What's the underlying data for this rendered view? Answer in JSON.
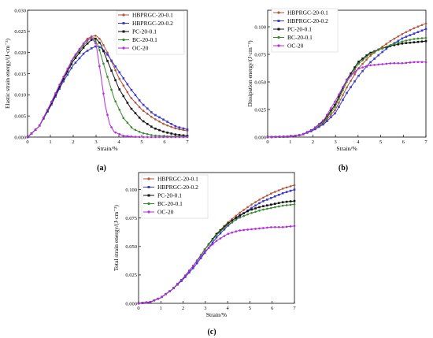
{
  "chart_data": [
    {
      "type": "line",
      "panel_label": "(a)",
      "xlabel": "Strain/%",
      "ylabel": "Elastic strain energy/(J·cm⁻³)",
      "xlim": [
        0,
        7
      ],
      "ylim": [
        0,
        0.03
      ],
      "xticks": [
        "0",
        "1",
        "2",
        "3",
        "4",
        "5",
        "6",
        "7"
      ],
      "yticks": [
        "0.000",
        "0.005",
        "0.010",
        "0.015",
        "0.020",
        "0.025",
        "0.030"
      ],
      "legend_position": "top-right",
      "series": [
        {
          "name": "HBPRGC-20-0.1",
          "color": "#b5523a",
          "marker": "circle",
          "x": [
            0,
            0.5,
            1,
            1.5,
            2,
            2.3,
            2.6,
            2.8,
            3.0,
            3.2,
            3.5,
            4,
            4.5,
            5,
            5.5,
            6,
            6.5,
            7
          ],
          "y": [
            0,
            0.0025,
            0.0075,
            0.013,
            0.0185,
            0.021,
            0.0232,
            0.0238,
            0.024,
            0.023,
            0.02,
            0.014,
            0.0095,
            0.0065,
            0.0045,
            0.003,
            0.002,
            0.0015
          ]
        },
        {
          "name": "HBPRGC-20-0.2",
          "color": "#3a3ad0",
          "marker": "square",
          "x": [
            0,
            0.5,
            1,
            1.5,
            2,
            2.5,
            2.8,
            3.0,
            3.2,
            3.5,
            4,
            4.5,
            5,
            5.5,
            6,
            6.5,
            7
          ],
          "y": [
            0,
            0.0025,
            0.0072,
            0.0125,
            0.017,
            0.02,
            0.021,
            0.0215,
            0.0212,
            0.0195,
            0.0155,
            0.0115,
            0.008,
            0.0055,
            0.004,
            0.0025,
            0.0018
          ]
        },
        {
          "name": "PC-20-0.1",
          "color": "#111111",
          "marker": "square",
          "x": [
            0,
            0.5,
            1,
            1.5,
            2,
            2.5,
            2.8,
            3.0,
            3.2,
            3.5,
            4,
            4.5,
            5,
            5.5,
            6,
            6.5,
            7
          ],
          "y": [
            0,
            0.0025,
            0.0075,
            0.013,
            0.018,
            0.0215,
            0.023,
            0.0233,
            0.022,
            0.018,
            0.0115,
            0.007,
            0.004,
            0.0022,
            0.0012,
            0.0006,
            0.0003
          ]
        },
        {
          "name": "BC-20-0.1",
          "color": "#3a8a2a",
          "marker": "circle",
          "x": [
            0,
            0.5,
            1,
            1.5,
            2,
            2.5,
            2.7,
            2.9,
            3.1,
            3.4,
            3.8,
            4.2,
            4.6,
            5,
            5.5,
            6,
            7
          ],
          "y": [
            0,
            0.0025,
            0.0078,
            0.0135,
            0.0185,
            0.022,
            0.0232,
            0.0235,
            0.0215,
            0.016,
            0.009,
            0.0045,
            0.002,
            0.001,
            0.0004,
            0.0002,
            0.0001
          ]
        },
        {
          "name": "OC-20",
          "color": "#b42ae0",
          "marker": "circle",
          "x": [
            0,
            0.5,
            1,
            1.5,
            2,
            2.5,
            2.8,
            3.0,
            3.2,
            3.4,
            3.6,
            3.8,
            4.2,
            4.6,
            5,
            7
          ],
          "y": [
            0,
            0.0025,
            0.0078,
            0.0135,
            0.0188,
            0.0225,
            0.0235,
            0.022,
            0.015,
            0.0075,
            0.003,
            0.0012,
            0.0003,
            0.0001,
            0,
            0
          ]
        }
      ]
    },
    {
      "type": "line",
      "panel_label": "(b)",
      "xlabel": "Strain/%",
      "ylabel": "Dissipation energy/(J·cm⁻³)",
      "xlim": [
        0,
        7
      ],
      "ylim": [
        0,
        0.115
      ],
      "xticks": [
        "0",
        "1",
        "2",
        "3",
        "4",
        "5",
        "6",
        "7"
      ],
      "yticks": [
        "0.000",
        "0.025",
        "0.050",
        "0.075",
        "0.100"
      ],
      "legend_position": "top-left",
      "series": [
        {
          "name": "HBPRGC-20-0.1",
          "color": "#b5523a",
          "marker": "circle",
          "x": [
            0,
            1,
            1.5,
            2,
            2.5,
            3,
            3.5,
            4,
            4.5,
            5,
            5.5,
            6,
            6.5,
            7
          ],
          "y": [
            0,
            0.0005,
            0.002,
            0.006,
            0.013,
            0.025,
            0.045,
            0.062,
            0.073,
            0.081,
            0.088,
            0.094,
            0.099,
            0.103
          ]
        },
        {
          "name": "HBPRGC-20-0.2",
          "color": "#3a3ad0",
          "marker": "square",
          "x": [
            0,
            1,
            1.5,
            2,
            2.5,
            3,
            3.5,
            4,
            4.5,
            5,
            5.5,
            6,
            6.5,
            7
          ],
          "y": [
            0,
            0.0005,
            0.002,
            0.006,
            0.012,
            0.022,
            0.04,
            0.055,
            0.067,
            0.076,
            0.084,
            0.09,
            0.094,
            0.098
          ]
        },
        {
          "name": "PC-20-0.1",
          "color": "#111111",
          "marker": "square",
          "x": [
            0,
            1,
            1.5,
            2,
            2.5,
            3,
            3.5,
            4,
            4.5,
            5,
            5.5,
            6,
            6.5,
            7
          ],
          "y": [
            0,
            0.0005,
            0.002,
            0.007,
            0.015,
            0.03,
            0.052,
            0.068,
            0.076,
            0.08,
            0.083,
            0.085,
            0.086,
            0.087
          ]
        },
        {
          "name": "BC-20-0.1",
          "color": "#3a8a2a",
          "marker": "circle",
          "x": [
            0,
            1,
            1.5,
            2,
            2.5,
            3,
            3.5,
            4,
            4.5,
            5,
            5.5,
            6,
            6.5,
            7
          ],
          "y": [
            0,
            0.0005,
            0.002,
            0.007,
            0.014,
            0.028,
            0.05,
            0.066,
            0.075,
            0.08,
            0.084,
            0.087,
            0.089,
            0.09
          ]
        },
        {
          "name": "OC-20",
          "color": "#b42ae0",
          "marker": "circle",
          "x": [
            0,
            1,
            1.5,
            2,
            2.5,
            3,
            3.5,
            4,
            4.5,
            5,
            5.5,
            6,
            6.5,
            7
          ],
          "y": [
            0,
            0.0005,
            0.002,
            0.007,
            0.016,
            0.033,
            0.052,
            0.062,
            0.065,
            0.066,
            0.067,
            0.067,
            0.068,
            0.068
          ]
        }
      ]
    },
    {
      "type": "line",
      "panel_label": "(c)",
      "xlabel": "Strain/%",
      "ylabel": "Total strain energy/(J·cm⁻³)",
      "xlim": [
        0,
        7
      ],
      "ylim": [
        0,
        0.115
      ],
      "xticks": [
        "0",
        "1",
        "2",
        "3",
        "4",
        "5",
        "6",
        "7"
      ],
      "yticks": [
        "0.000",
        "0.025",
        "0.050",
        "0.075",
        "0.100"
      ],
      "legend_position": "top-left",
      "series": [
        {
          "name": "HBPRGC-20-0.1",
          "color": "#b5523a",
          "marker": "circle",
          "x": [
            0,
            0.5,
            1,
            1.5,
            2,
            2.5,
            3,
            3.5,
            4,
            4.5,
            5,
            5.5,
            6,
            6.5,
            7
          ],
          "y": [
            0,
            0.001,
            0.005,
            0.012,
            0.022,
            0.034,
            0.048,
            0.061,
            0.071,
            0.079,
            0.086,
            0.092,
            0.097,
            0.101,
            0.104
          ]
        },
        {
          "name": "HBPRGC-20-0.2",
          "color": "#3a3ad0",
          "marker": "square",
          "x": [
            0,
            0.5,
            1,
            1.5,
            2,
            2.5,
            3,
            3.5,
            4,
            4.5,
            5,
            5.5,
            6,
            6.5,
            7
          ],
          "y": [
            0,
            0.001,
            0.005,
            0.012,
            0.021,
            0.032,
            0.045,
            0.058,
            0.068,
            0.076,
            0.083,
            0.089,
            0.093,
            0.097,
            0.1
          ]
        },
        {
          "name": "PC-20-0.1",
          "color": "#111111",
          "marker": "square",
          "x": [
            0,
            0.5,
            1,
            1.5,
            2,
            2.5,
            3,
            3.5,
            4,
            4.5,
            5,
            5.5,
            6,
            6.5,
            7
          ],
          "y": [
            0,
            0.001,
            0.005,
            0.012,
            0.022,
            0.034,
            0.048,
            0.061,
            0.07,
            0.077,
            0.082,
            0.085,
            0.087,
            0.089,
            0.09
          ]
        },
        {
          "name": "BC-20-0.1",
          "color": "#3a8a2a",
          "marker": "circle",
          "x": [
            0,
            0.5,
            1,
            1.5,
            2,
            2.5,
            3,
            3.5,
            4,
            4.5,
            5,
            5.5,
            6,
            6.5,
            7
          ],
          "y": [
            0,
            0.001,
            0.005,
            0.012,
            0.022,
            0.034,
            0.048,
            0.06,
            0.069,
            0.075,
            0.079,
            0.082,
            0.084,
            0.086,
            0.087
          ]
        },
        {
          "name": "OC-20",
          "color": "#b42ae0",
          "marker": "circle",
          "x": [
            0,
            0.5,
            1,
            1.5,
            2,
            2.5,
            3,
            3.5,
            4,
            4.5,
            5,
            5.5,
            6,
            6.5,
            7
          ],
          "y": [
            0,
            0.001,
            0.005,
            0.012,
            0.022,
            0.034,
            0.046,
            0.055,
            0.061,
            0.064,
            0.065,
            0.066,
            0.067,
            0.067,
            0.068
          ]
        }
      ]
    }
  ]
}
